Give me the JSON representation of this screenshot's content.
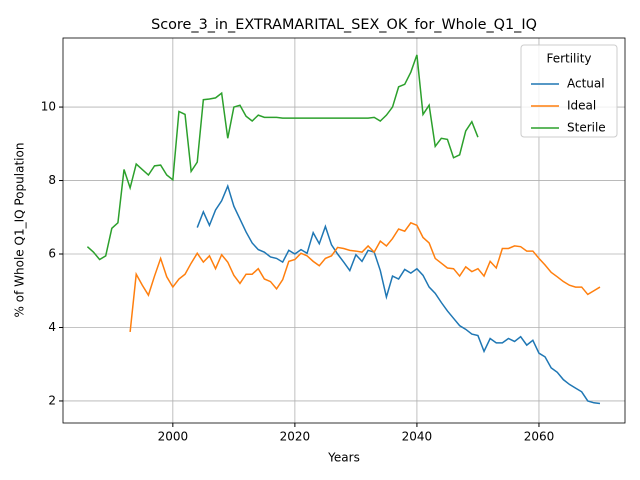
{
  "chart_data": {
    "type": "line",
    "title": "Score_3_in_EXTRAMARITAL_SEX_OK_for_Whole_Q1_IQ",
    "x_label": "Years",
    "y_label": "% of Whole Q1_IQ Population",
    "legend_title": "Fertility",
    "legend": "upper right",
    "grid": true,
    "xlim": [
      1982,
      2074.1
    ],
    "ylim": [
      1.4,
      11.88
    ],
    "xticks": [
      2000,
      2020,
      2040,
      2060
    ],
    "yticks": [
      2,
      4,
      6,
      8,
      10
    ],
    "x": [
      1986,
      1987,
      1988,
      1989,
      1990,
      1991,
      1992,
      1993,
      1994,
      1995,
      1996,
      1997,
      1998,
      1999,
      2000,
      2001,
      2002,
      2003,
      2004,
      2005,
      2006,
      2007,
      2008,
      2009,
      2010,
      2011,
      2012,
      2013,
      2014,
      2015,
      2016,
      2017,
      2018,
      2019,
      2020,
      2021,
      2022,
      2023,
      2024,
      2025,
      2026,
      2027,
      2028,
      2029,
      2030,
      2031,
      2032,
      2033,
      2034,
      2035,
      2036,
      2037,
      2038,
      2039,
      2040,
      2041,
      2042,
      2043,
      2044,
      2045,
      2046,
      2047,
      2048,
      2049,
      2050,
      2051,
      2052,
      2053,
      2054,
      2055,
      2056,
      2057,
      2058,
      2059,
      2060,
      2061,
      2062,
      2063,
      2064,
      2065,
      2066,
      2067,
      2068,
      2069,
      2070
    ],
    "series": [
      {
        "name": "Actual",
        "color": "#1f77b4",
        "values": [
          null,
          null,
          null,
          null,
          null,
          null,
          null,
          null,
          null,
          null,
          null,
          null,
          null,
          null,
          null,
          null,
          null,
          null,
          6.72,
          7.15,
          6.78,
          7.2,
          7.45,
          7.85,
          7.3,
          6.95,
          6.6,
          6.3,
          6.12,
          6.05,
          5.92,
          5.88,
          5.78,
          6.1,
          6.0,
          6.12,
          6.02,
          6.58,
          6.28,
          6.75,
          6.25,
          6.0,
          5.78,
          5.55,
          5.98,
          5.8,
          6.1,
          6.05,
          5.55,
          4.83,
          5.4,
          5.32,
          5.58,
          5.48,
          5.6,
          5.42,
          5.1,
          4.93,
          4.68,
          4.45,
          4.25,
          4.05,
          3.95,
          3.82,
          3.78,
          3.35,
          3.7,
          3.58,
          3.58,
          3.7,
          3.62,
          3.75,
          3.52,
          3.65,
          3.3,
          3.2,
          2.9,
          2.78,
          2.58,
          2.45,
          2.35,
          2.25,
          2.0,
          1.95,
          1.93
        ]
      },
      {
        "name": "Ideal",
        "color": "#ff7f0e",
        "values": [
          null,
          null,
          null,
          null,
          null,
          null,
          null,
          3.88,
          5.45,
          5.15,
          4.88,
          5.4,
          5.88,
          5.38,
          5.1,
          5.32,
          5.45,
          5.75,
          6.02,
          5.78,
          5.95,
          5.6,
          5.98,
          5.78,
          5.42,
          5.2,
          5.45,
          5.45,
          5.6,
          5.32,
          5.25,
          5.05,
          5.3,
          5.8,
          5.85,
          6.02,
          5.95,
          5.8,
          5.68,
          5.88,
          5.95,
          6.18,
          6.15,
          6.1,
          6.08,
          6.05,
          6.22,
          6.05,
          6.35,
          6.22,
          6.42,
          6.68,
          6.62,
          6.85,
          6.78,
          6.45,
          6.3,
          5.88,
          5.75,
          5.62,
          5.6,
          5.4,
          5.65,
          5.52,
          5.6,
          5.4,
          5.8,
          5.62,
          6.15,
          6.15,
          6.22,
          6.2,
          6.08,
          6.08,
          5.88,
          5.7,
          5.5,
          5.38,
          5.25,
          5.15,
          5.1,
          5.1,
          4.9,
          5.0,
          5.1
        ]
      },
      {
        "name": "Sterile",
        "color": "#2ca02c",
        "values": [
          6.2,
          6.05,
          5.85,
          5.95,
          6.7,
          6.85,
          8.3,
          7.8,
          8.45,
          8.3,
          8.15,
          8.4,
          8.42,
          8.15,
          8.02,
          9.88,
          9.8,
          8.25,
          8.5,
          10.2,
          10.22,
          10.25,
          10.38,
          9.15,
          10.0,
          10.05,
          9.75,
          9.62,
          9.78,
          9.72,
          9.72,
          9.72,
          9.7,
          9.7,
          9.7,
          9.7,
          9.7,
          9.7,
          9.7,
          9.7,
          9.7,
          9.7,
          9.7,
          9.7,
          9.7,
          9.7,
          9.7,
          9.72,
          9.62,
          9.78,
          10.0,
          10.55,
          10.62,
          10.95,
          11.42,
          9.8,
          10.05,
          8.93,
          9.15,
          9.12,
          8.62,
          8.7,
          9.35,
          9.6,
          9.18,
          null,
          null,
          null,
          null,
          null,
          null,
          null,
          null,
          null,
          null,
          null,
          null,
          null,
          null,
          null,
          null,
          null,
          null,
          null,
          null
        ]
      }
    ]
  }
}
